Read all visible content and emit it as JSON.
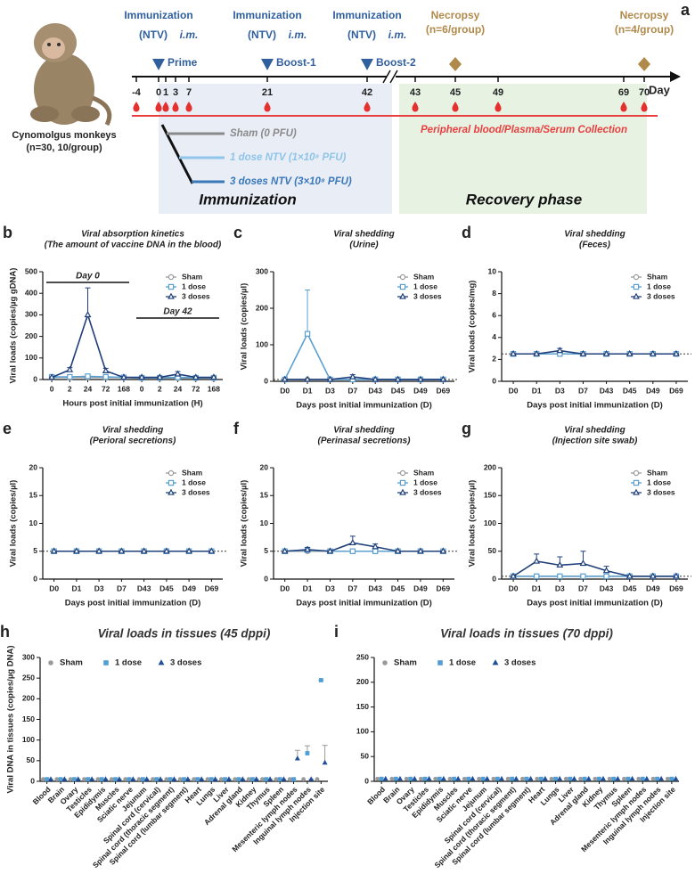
{
  "timeline": {
    "label": "a",
    "days": [
      -4,
      0,
      1,
      3,
      7,
      21,
      42,
      43,
      45,
      49,
      69,
      70
    ],
    "day_label": "Day",
    "immunizations": [
      {
        "title": "Immunization",
        "agent": "(NTV)",
        "route": "i.m.",
        "name": "Prime",
        "day": 0
      },
      {
        "title": "Immunization",
        "agent": "(NTV)",
        "route": "i.m.",
        "name": "Boost-1",
        "day": 21
      },
      {
        "title": "Immunization",
        "agent": "(NTV)",
        "route": "i.m.",
        "name": "Boost-2",
        "day": 42
      }
    ],
    "necropsies": [
      {
        "title": "Necropsy",
        "n": "(n=6/group)",
        "day": 45
      },
      {
        "title": "Necropsy",
        "n": "(n=4/group)",
        "day": 70
      }
    ],
    "subject": "Cynomolgus monkeys",
    "subject_n": "(n=30, 10/group)",
    "groups": [
      {
        "name": "Sham (0 PFU)",
        "color": "#8a8a8a"
      },
      {
        "name": "1 dose NTV (1×10⁸ PFU)",
        "color": "#8ec5e8"
      },
      {
        "name": "3 doses NTV (3×10⁸ PFU)",
        "color": "#3a78b8"
      }
    ],
    "collection": "Peripheral blood/Plasma/Serum Collection",
    "phases": [
      "Immunization",
      "Recovery phase"
    ]
  },
  "chart_data": [
    {
      "type": "line",
      "panel": "b",
      "title": "Viral absorption kinetics",
      "subtitle": "(The amount of vaccine DNA in the blood)",
      "categories": [
        "0",
        "2",
        "24",
        "72",
        "168",
        "0",
        "2",
        "24",
        "72",
        "168"
      ],
      "annotations": [
        "Day 0",
        "Day 42"
      ],
      "ylim": [
        0,
        500
      ],
      "yticks": [
        0,
        100,
        200,
        300,
        400,
        500
      ],
      "ylabel": "Viral loads (copies/µg gDNA)",
      "xlabel": "Hours post initial immunization (H)",
      "series": [
        {
          "name": "Sham",
          "color": "#9a9a9a",
          "marker": "circle",
          "values": [
            10,
            10,
            10,
            10,
            10,
            5,
            5,
            5,
            5,
            5
          ]
        },
        {
          "name": "1 dose",
          "color": "#5b9fcf",
          "marker": "square",
          "values": [
            12,
            12,
            15,
            12,
            10,
            8,
            8,
            10,
            8,
            8
          ]
        },
        {
          "name": "3 doses",
          "color": "#1f3f7a",
          "marker": "triangle",
          "values": [
            10,
            45,
            300,
            40,
            10,
            10,
            10,
            25,
            10,
            10
          ],
          "errors": [
            2,
            10,
            125,
            12,
            2,
            2,
            3,
            12,
            3,
            2
          ]
        }
      ]
    },
    {
      "type": "line",
      "panel": "c",
      "title": "Viral shedding",
      "subtitle": "(Urine)",
      "categories": [
        "D0",
        "D1",
        "D3",
        "D7",
        "D43",
        "D45",
        "D49",
        "D69"
      ],
      "reference_line": 5,
      "ylim": [
        0,
        300
      ],
      "yticks": [
        0,
        100,
        200,
        300
      ],
      "ylabel": "Viral loads (copies/µl)",
      "xlabel": "Days post initial immunization (D)",
      "series": [
        {
          "name": "Sham",
          "color": "#9a9a9a",
          "marker": "circle",
          "values": [
            5,
            5,
            5,
            5,
            5,
            5,
            5,
            5
          ]
        },
        {
          "name": "1 dose",
          "color": "#5b9fcf",
          "marker": "square",
          "values": [
            5,
            130,
            5,
            5,
            5,
            5,
            5,
            5
          ],
          "errors": [
            0,
            120,
            0,
            0,
            0,
            0,
            0,
            0
          ]
        },
        {
          "name": "3 doses",
          "color": "#1f3f7a",
          "marker": "triangle",
          "values": [
            5,
            5,
            5,
            12,
            5,
            5,
            5,
            5
          ],
          "errors": [
            0,
            0,
            0,
            6,
            0,
            0,
            0,
            0
          ]
        }
      ]
    },
    {
      "type": "line",
      "panel": "d",
      "title": "Viral shedding",
      "subtitle": "(Feces)",
      "categories": [
        "D0",
        "D1",
        "D3",
        "D7",
        "D43",
        "D45",
        "D49",
        "D69"
      ],
      "reference_line": 2.5,
      "ylim": [
        0,
        10
      ],
      "yticks": [
        0,
        2,
        4,
        6,
        8,
        10
      ],
      "ylabel": "Viral loads (copies/mg)",
      "xlabel": "Days post initial immunization (D)",
      "series": [
        {
          "name": "Sham",
          "color": "#9a9a9a",
          "marker": "circle",
          "values": [
            2.5,
            2.5,
            2.5,
            2.5,
            2.5,
            2.5,
            2.5,
            2.5
          ]
        },
        {
          "name": "1 dose",
          "color": "#5b9fcf",
          "marker": "square",
          "values": [
            2.5,
            2.5,
            2.5,
            2.5,
            2.5,
            2.5,
            2.5,
            2.5
          ]
        },
        {
          "name": "3 doses",
          "color": "#1f3f7a",
          "marker": "triangle",
          "values": [
            2.5,
            2.5,
            2.8,
            2.5,
            2.5,
            2.5,
            2.5,
            2.5
          ],
          "errors": [
            0,
            0,
            0.2,
            0,
            0,
            0,
            0,
            0
          ]
        }
      ]
    },
    {
      "type": "line",
      "panel": "e",
      "title": "Viral shedding",
      "subtitle": "(Perioral secretions)",
      "categories": [
        "D0",
        "D1",
        "D3",
        "D7",
        "D43",
        "D45",
        "D49",
        "D69"
      ],
      "reference_line": 5,
      "ylim": [
        0,
        20
      ],
      "yticks": [
        0,
        5,
        10,
        15,
        20
      ],
      "ylabel": "Viral loads (copies/µl)",
      "xlabel": "Days post initial immunization (D)",
      "series": [
        {
          "name": "Sham",
          "color": "#9a9a9a",
          "marker": "circle",
          "values": [
            5,
            5,
            5,
            5,
            5,
            5,
            5,
            5
          ]
        },
        {
          "name": "1 dose",
          "color": "#5b9fcf",
          "marker": "square",
          "values": [
            5,
            5,
            5,
            5,
            5,
            5,
            5,
            5
          ]
        },
        {
          "name": "3 doses",
          "color": "#1f3f7a",
          "marker": "triangle",
          "values": [
            5,
            5,
            5,
            5,
            5,
            5,
            5,
            5
          ]
        }
      ]
    },
    {
      "type": "line",
      "panel": "f",
      "title": "Viral shedding",
      "subtitle": "(Perinasal secretions)",
      "categories": [
        "D0",
        "D1",
        "D3",
        "D7",
        "D43",
        "D45",
        "D49",
        "D69"
      ],
      "reference_line": 5,
      "ylim": [
        0,
        20
      ],
      "yticks": [
        0,
        5,
        10,
        15,
        20
      ],
      "ylabel": "Viral loads (copies/µl)",
      "xlabel": "Days post initial immunization (D)",
      "series": [
        {
          "name": "Sham",
          "color": "#9a9a9a",
          "marker": "circle",
          "values": [
            5,
            5,
            5,
            5,
            5,
            5,
            5,
            5
          ]
        },
        {
          "name": "1 dose",
          "color": "#5b9fcf",
          "marker": "square",
          "values": [
            5,
            5.2,
            5,
            5,
            5,
            5,
            5,
            5
          ]
        },
        {
          "name": "3 doses",
          "color": "#1f3f7a",
          "marker": "triangle",
          "values": [
            5,
            5.3,
            5,
            6.5,
            5.8,
            5,
            5,
            5
          ],
          "errors": [
            0,
            0.4,
            0,
            1.2,
            0.5,
            0,
            0,
            0
          ]
        }
      ]
    },
    {
      "type": "line",
      "panel": "g",
      "title": "Viral shedding",
      "subtitle": "(Injection site swab)",
      "categories": [
        "D0",
        "D1",
        "D3",
        "D7",
        "D43",
        "D45",
        "D49",
        "D69"
      ],
      "reference_line": 5,
      "ylim": [
        0,
        200
      ],
      "yticks": [
        0,
        50,
        100,
        150,
        200
      ],
      "ylabel": "Viral loads (copies/µl)",
      "xlabel": "Days post initial immunization (D)",
      "series": [
        {
          "name": "Sham",
          "color": "#9a9a9a",
          "marker": "circle",
          "values": [
            5,
            5,
            5,
            5,
            5,
            5,
            5,
            5
          ]
        },
        {
          "name": "1 dose",
          "color": "#5b9fcf",
          "marker": "square",
          "values": [
            5,
            5,
            5,
            5,
            5,
            5,
            5,
            5
          ]
        },
        {
          "name": "3 doses",
          "color": "#1f3f7a",
          "marker": "triangle",
          "values": [
            5,
            32,
            25,
            28,
            15,
            5,
            5,
            5
          ],
          "errors": [
            0,
            13,
            15,
            22,
            8,
            0,
            0,
            0
          ]
        }
      ]
    },
    {
      "type": "scatter",
      "panel": "h",
      "title": "Viral loads in tissues (45 dppi)",
      "categories": [
        "Blood",
        "Brain",
        "Ovary",
        "Testicles",
        "Epididymis",
        "Muscles",
        "Sciatic nerve",
        "Jejunum",
        "Spinal cord (cervical)",
        "Spinal cord (thoracic segment)",
        "Spinal cord (lumbar segment)",
        "Heart",
        "Lungs",
        "Liver",
        "Adrenal gland",
        "Kidney",
        "Thymus",
        "Spleen",
        "Mesenteric lymph nodes",
        "Inguinal lymph nodes",
        "Injection site"
      ],
      "ylim": [
        0,
        300
      ],
      "yticks": [
        0,
        50,
        100,
        150,
        200,
        250,
        300
      ],
      "ylabel": "Viral  DNA in tissues (copies/µg DNA)",
      "series": [
        {
          "name": "Sham",
          "color": "#9a9a9a",
          "marker": "circle",
          "values": [
            5,
            5,
            5,
            5,
            5,
            5,
            5,
            5,
            5,
            5,
            5,
            5,
            5,
            5,
            5,
            5,
            5,
            5,
            5,
            5,
            5
          ]
        },
        {
          "name": "1 dose",
          "color": "#4f9fd6",
          "marker": "square",
          "values": [
            5,
            5,
            5,
            5,
            5,
            5,
            5,
            5,
            5,
            5,
            5,
            5,
            5,
            5,
            5,
            5,
            5,
            5,
            5,
            68,
            245
          ],
          "errors": [
            0,
            0,
            0,
            0,
            0,
            0,
            0,
            0,
            0,
            0,
            0,
            0,
            0,
            0,
            0,
            0,
            0,
            0,
            0,
            18,
            0
          ]
        },
        {
          "name": "3 doses",
          "color": "#1f4f9a",
          "marker": "triangle",
          "values": [
            5,
            5,
            5,
            5,
            5,
            5,
            5,
            5,
            5,
            5,
            5,
            5,
            5,
            5,
            5,
            5,
            5,
            5,
            55,
            5,
            45
          ],
          "errors": [
            0,
            0,
            0,
            0,
            0,
            0,
            0,
            0,
            0,
            0,
            0,
            0,
            0,
            0,
            0,
            0,
            0,
            0,
            20,
            0,
            42
          ]
        }
      ]
    },
    {
      "type": "scatter",
      "panel": "i",
      "title": "Viral loads in tissues (70 dppi)",
      "categories": [
        "Blood",
        "Brain",
        "Ovary",
        "Testicles",
        "Epididymis",
        "Muscles",
        "Sciatic nerve",
        "Jejunum",
        "Spinal cord (cervical)",
        "Spinal cord (thoracic segment)",
        "Spinal cord (lumbar segment)",
        "Heart",
        "Lungs",
        "Liver",
        "Adrenal gland",
        "Kidney",
        "Thymus",
        "Spleen",
        "Mesenteric lymph nodes",
        "Inguinal lymph nodes",
        "Injection site"
      ],
      "ylim": [
        0,
        250
      ],
      "yticks": [
        0,
        50,
        100,
        150,
        200,
        250
      ],
      "series": [
        {
          "name": "Sham",
          "color": "#9a9a9a",
          "marker": "circle",
          "values": [
            5,
            5,
            5,
            5,
            5,
            5,
            5,
            5,
            5,
            5,
            5,
            5,
            5,
            5,
            5,
            5,
            5,
            5,
            5,
            5,
            5
          ]
        },
        {
          "name": "1 dose",
          "color": "#4f9fd6",
          "marker": "square",
          "values": [
            5,
            5,
            5,
            5,
            5,
            5,
            5,
            5,
            5,
            5,
            5,
            5,
            5,
            5,
            5,
            5,
            5,
            5,
            5,
            5,
            5
          ]
        },
        {
          "name": "3 doses",
          "color": "#1f4f9a",
          "marker": "triangle",
          "values": [
            5,
            5,
            5,
            5,
            5,
            5,
            5,
            5,
            5,
            5,
            5,
            5,
            5,
            5,
            5,
            5,
            5,
            5,
            5,
            5,
            5
          ]
        }
      ]
    }
  ]
}
